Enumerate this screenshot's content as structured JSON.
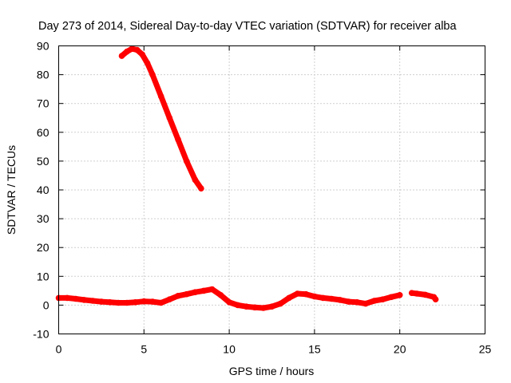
{
  "chart_data": {
    "type": "line",
    "title": "Day 273 of 2014, Sidereal Day-to-day VTEC variation (SDTVAR) for receiver alba",
    "xlabel": "GPS time / hours",
    "ylabel": "SDTVAR / TECUs",
    "xlim": [
      0,
      25
    ],
    "ylim": [
      -10,
      90
    ],
    "xticks": [
      0,
      5,
      10,
      15,
      20,
      25
    ],
    "yticks": [
      -10,
      0,
      10,
      20,
      30,
      40,
      50,
      60,
      70,
      80,
      90
    ],
    "grid": true,
    "legend": "none",
    "series_color": "#ff0000",
    "series": [
      {
        "name": "arc-high",
        "x": [
          3.7,
          4.0,
          4.3,
          4.6,
          4.9,
          5.2,
          5.5,
          6.0,
          6.5,
          7.0,
          7.5,
          8.0,
          8.35
        ],
        "y": [
          86.5,
          88.0,
          89.0,
          88.6,
          87.0,
          84.0,
          80.0,
          72.5,
          65.0,
          57.5,
          50.0,
          43.5,
          40.5
        ]
      },
      {
        "name": "arc-low",
        "x": [
          0,
          0.5,
          1.0,
          1.5,
          2.0,
          2.5,
          3.0,
          3.5,
          4.0,
          4.5,
          5.0,
          5.5,
          6.0,
          6.5,
          7.0,
          7.5,
          8.0,
          8.5,
          9.0,
          9.5,
          10.0,
          10.5,
          11.0,
          11.5,
          12.0,
          12.5,
          13.0,
          13.5,
          14.0,
          14.5,
          15.0,
          15.5,
          16.0,
          16.5,
          17.0,
          17.5,
          18.0,
          18.5,
          19.0,
          19.5,
          20.0
        ],
        "y": [
          2.5,
          2.5,
          2.2,
          1.8,
          1.5,
          1.2,
          1.0,
          0.8,
          0.8,
          1.0,
          1.3,
          1.2,
          0.8,
          2.0,
          3.2,
          3.8,
          4.5,
          5.0,
          5.5,
          3.5,
          1.0,
          0.0,
          -0.5,
          -0.8,
          -1.0,
          -0.5,
          0.5,
          2.5,
          4.0,
          3.8,
          3.0,
          2.5,
          2.2,
          1.8,
          1.2,
          1.0,
          0.5,
          1.5,
          2.0,
          2.8,
          3.5
        ]
      },
      {
        "name": "arc-tail",
        "x": [
          20.7,
          21.0,
          21.5,
          22.0,
          22.1
        ],
        "y": [
          4.2,
          4.0,
          3.6,
          2.8,
          2.0
        ]
      }
    ]
  }
}
